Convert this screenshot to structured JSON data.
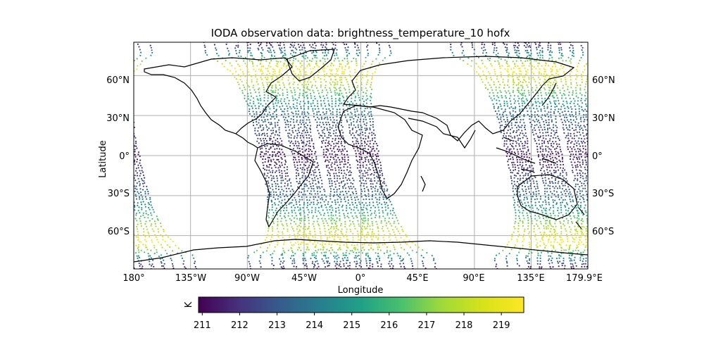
{
  "title": "IODA observation data: brightness_temperature_10 hofx",
  "xlabel": "Longitude",
  "ylabel": "Latitude",
  "x_ticks": [
    "180°",
    "135°W",
    "90°W",
    "45°W",
    "0°",
    "45°E",
    "90°E",
    "135°E",
    "179.9°E"
  ],
  "y_ticks_left": [
    "60°N",
    "30°N",
    "0°",
    "30°S",
    "60°S"
  ],
  "y_ticks_right": [
    "60°N",
    "30°N",
    "0°",
    "30°S",
    "60°S"
  ],
  "colorbar": {
    "label": "K",
    "ticks": [
      "211",
      "212",
      "213",
      "214",
      "215",
      "216",
      "217",
      "218",
      "219"
    ],
    "colormap": "viridis",
    "colors": [
      "#440154",
      "#3b528b",
      "#21918c",
      "#5ec962",
      "#fde725"
    ]
  },
  "chart_data": {
    "type": "scatter",
    "title": "IODA observation data: brightness_temperature_10 hofx",
    "xlabel": "Longitude",
    "ylabel": "Latitude",
    "xlim": [
      -180,
      179.9
    ],
    "ylim": [
      -90,
      90
    ],
    "grid": true,
    "colorbar_range": [
      210.9,
      219.6
    ],
    "colorbar_unit": "K",
    "swaths": [
      {
        "pass": 1,
        "lon_at_equator": -70,
        "lat_range": [
          -85,
          85
        ]
      },
      {
        "pass": 2,
        "lon_at_equator": -45,
        "lat_range": [
          -85,
          85
        ]
      },
      {
        "pass": 3,
        "lon_at_equator": -20,
        "lat_range": [
          -85,
          85
        ]
      },
      {
        "pass": 4,
        "lon_at_equator": 5,
        "lat_range": [
          -85,
          85
        ]
      },
      {
        "pass": 5,
        "lon_at_equator": 125,
        "lat_range": [
          -85,
          85
        ]
      },
      {
        "pass": 6,
        "lon_at_equator": 150,
        "lat_range": [
          -85,
          85
        ]
      },
      {
        "pass": 7,
        "lon_at_equator": 175,
        "lat_range": [
          -85,
          85
        ]
      }
    ]
  }
}
